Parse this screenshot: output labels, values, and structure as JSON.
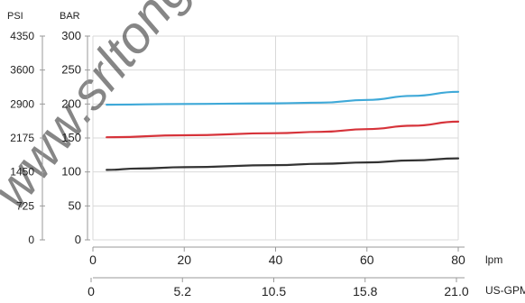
{
  "chart_data": {
    "type": "line",
    "grid": true,
    "legend": "none",
    "axes": {
      "psi": {
        "label": "PSI",
        "ticks": [
          "0",
          "725",
          "1450",
          "2175",
          "2900",
          "3600",
          "4350"
        ]
      },
      "bar": {
        "label": "BAR",
        "ticks": [
          "0",
          "50",
          "100",
          "150",
          "200",
          "250",
          "300"
        ],
        "ylim": [
          0,
          300
        ]
      },
      "lpm": {
        "label": "lpm",
        "ticks": [
          "0",
          "20",
          "40",
          "60",
          "80"
        ],
        "xlim": [
          0,
          80
        ]
      },
      "gpm": {
        "label": "US-GPM",
        "ticks": [
          "0",
          "5.2",
          "10.5",
          "15.8",
          "21.0"
        ]
      }
    },
    "series": [
      {
        "color": "#3fa9d8",
        "x": [
          3,
          20,
          40,
          50,
          60,
          70,
          80
        ],
        "values": [
          199,
          200,
          201,
          202,
          206,
          212,
          218
        ]
      },
      {
        "color": "#d6333a",
        "x": [
          3,
          20,
          40,
          50,
          60,
          70,
          80
        ],
        "values": [
          151,
          154,
          157,
          159,
          163,
          168,
          174
        ]
      },
      {
        "color": "#333333",
        "x": [
          3,
          10,
          20,
          40,
          50,
          60,
          70,
          80
        ],
        "values": [
          103,
          105,
          107,
          110,
          112,
          114,
          117,
          120
        ]
      }
    ]
  },
  "watermark": {
    "text": "www.srltong.co",
    "color": "#d0d0d0"
  }
}
